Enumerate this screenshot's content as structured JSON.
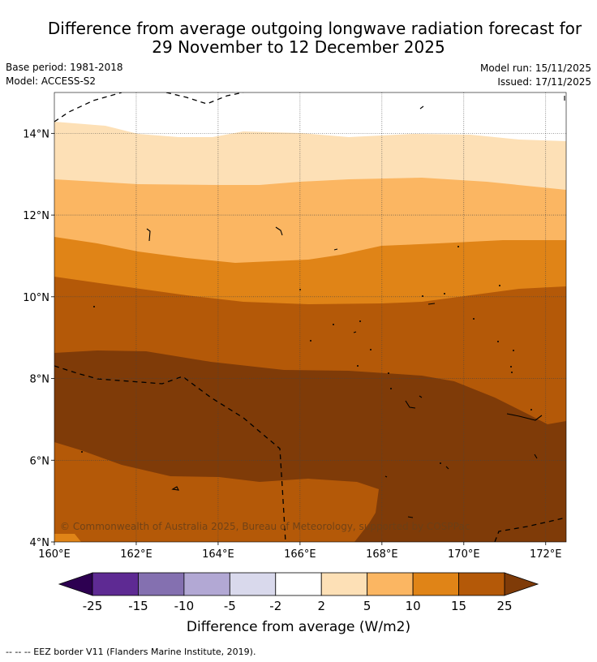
{
  "chart_data": {
    "type": "contour_map",
    "title_line1": "Difference from average outgoing longwave radiation forecast for",
    "title_line2": "29 November to 12 December 2025",
    "base_period": "Base period: 1981-2018",
    "model": "Model: ACCESS-S2",
    "model_run": "Model run: 15/11/2025",
    "issued": "Issued: 17/11/2025",
    "credit": "© Commonwealth of Australia 2025, Bureau of Meteorology, supported by COSPPac",
    "footer": "--  --  -- EEZ border V11 (Flanders Marine Institute, 2019).",
    "x_axis": {
      "range": [
        160,
        172.5
      ],
      "ticks": [
        160,
        162,
        164,
        166,
        168,
        170,
        172
      ],
      "tick_labels": [
        "160°E",
        "162°E",
        "164°E",
        "166°E",
        "168°E",
        "170°E",
        "172°E"
      ]
    },
    "y_axis": {
      "range": [
        4,
        15
      ],
      "ticks": [
        4,
        6,
        8,
        10,
        12,
        14
      ],
      "tick_labels": [
        "4°N",
        "6°N",
        "8°N",
        "10°N",
        "12°N",
        "14°N"
      ]
    },
    "grid": true,
    "colorbar": {
      "label": "Difference from average (W/m2)",
      "tick_labels": [
        "-25",
        "-15",
        "-10",
        "-5",
        "-2",
        "2",
        "5",
        "10",
        "15",
        "25"
      ],
      "bins": [
        {
          "range": "-15 to -25",
          "color": "#5e2a93"
        },
        {
          "range": "-10 to -15",
          "color": "#8470b0"
        },
        {
          "range": "-5 to -10",
          "color": "#b2a8d4"
        },
        {
          "range": "-2 to -5",
          "color": "#d9d9ec"
        },
        {
          "range": "-2 to 2",
          "color": "#ffffff"
        },
        {
          "range": "2 to 5",
          "color": "#fde0b6"
        },
        {
          "range": "5 to 10",
          "color": "#fbb662"
        },
        {
          "range": "10 to 15",
          "color": "#e08417"
        },
        {
          "range": "15 to 25",
          "color": "#b45908"
        }
      ],
      "under_color": "#2d0051",
      "over_color": "#7f3b08"
    },
    "bands": [
      {
        "range": "-2 to 2",
        "color": "#ffffff",
        "location": "north of ~14.2°N"
      },
      {
        "range": "2 to 5",
        "color": "#fde0b6",
        "location": "~12.9°N to ~14.2°N"
      },
      {
        "range": "5 to 10",
        "color": "#fbb662",
        "location": "~11°N to ~12.9°N"
      },
      {
        "range": "10 to 15",
        "color": "#e08417",
        "location": "~10°N to ~11.4°N"
      },
      {
        "range": "15 to 25",
        "color": "#b45908",
        "location": "~8°N to ~10.5°N and south of ~6°N"
      },
      {
        "range": "> 25",
        "color": "#7f3b08",
        "location": "~5.5°N to ~8.5°N, extending south in the east"
      }
    ]
  }
}
